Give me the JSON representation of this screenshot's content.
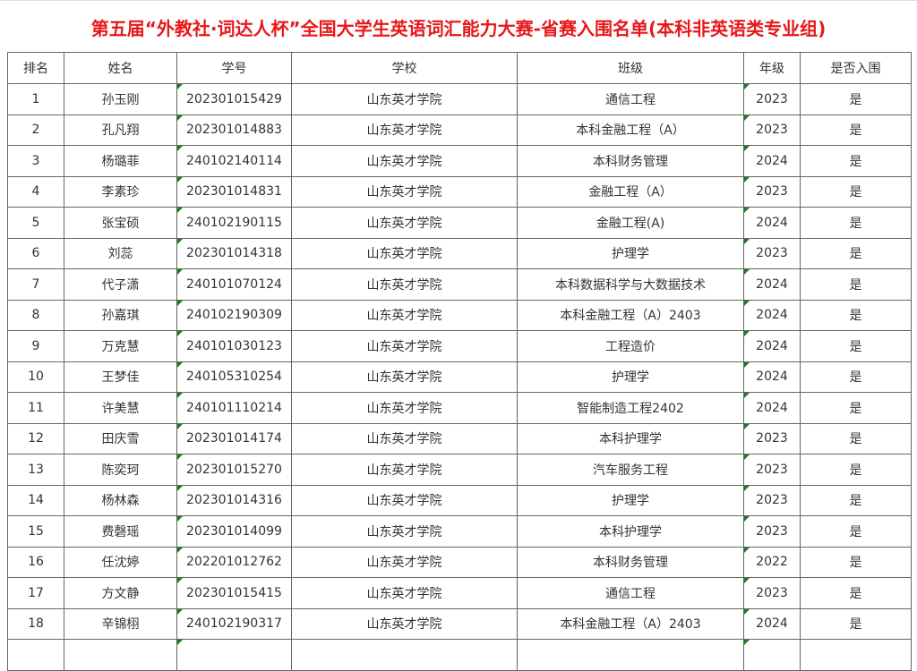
{
  "title": "第五届“外教社·词达人杯”全国大学生英语词汇能力大赛-省赛入围名单(本科非英语类专业组)",
  "headers": [
    "排名",
    "姓名",
    "学号",
    "学校",
    "班级",
    "年级",
    "是否入围"
  ],
  "rows": [
    [
      "1",
      "孙玉刚",
      "202301015429",
      "山东英才学院",
      "通信工程",
      "2023",
      "是"
    ],
    [
      "2",
      "孔凡翔",
      "202301014883",
      "山东英才学院",
      "本科金融工程（A）",
      "2023",
      "是"
    ],
    [
      "3",
      "杨璐菲",
      "240102140114",
      "山东英才学院",
      "本科财务管理",
      "2024",
      "是"
    ],
    [
      "4",
      "李素珍",
      "202301014831",
      "山东英才学院",
      "金融工程（A）",
      "2023",
      "是"
    ],
    [
      "5",
      "张宝硕",
      "240102190115",
      "山东英才学院",
      "金融工程(A)",
      "2024",
      "是"
    ],
    [
      "6",
      "刘蕊",
      "202301014318",
      "山东英才学院",
      "护理学",
      "2023",
      "是"
    ],
    [
      "7",
      "代子潇",
      "240101070124",
      "山东英才学院",
      "本科数据科学与大数据技术",
      "2024",
      "是"
    ],
    [
      "8",
      "孙嘉琪",
      "240102190309",
      "山东英才学院",
      "本科金融工程（A）2403",
      "2024",
      "是"
    ],
    [
      "9",
      "万克慧",
      "240101030123",
      "山东英才学院",
      "工程造价",
      "2024",
      "是"
    ],
    [
      "10",
      "王梦佳",
      "240105310254",
      "山东英才学院",
      "护理学",
      "2024",
      "是"
    ],
    [
      "11",
      "许美慧",
      "240101110214",
      "山东英才学院",
      "智能制造工程2402",
      "2024",
      "是"
    ],
    [
      "12",
      "田庆雪",
      "202301014174",
      "山东英才学院",
      "本科护理学",
      "2023",
      "是"
    ],
    [
      "13",
      "陈奕珂",
      "202301015270",
      "山东英才学院",
      "汽车服务工程",
      "2023",
      "是"
    ],
    [
      "14",
      "杨林森",
      "202301014316",
      "山东英才学院",
      "护理学",
      "2023",
      "是"
    ],
    [
      "15",
      "费磬瑶",
      "202301014099",
      "山东英才学院",
      "本科护理学",
      "2023",
      "是"
    ],
    [
      "16",
      "任沈婷",
      "202201012762",
      "山东英才学院",
      "本科财务管理",
      "2022",
      "是"
    ],
    [
      "17",
      "方文静",
      "202301015415",
      "山东英才学院",
      "通信工程",
      "2023",
      "是"
    ],
    [
      "18",
      "辛锦栩",
      "240102190317",
      "山东英才学院",
      "本科金融工程（A）2403",
      "2024",
      "是"
    ]
  ],
  "colors": {
    "title": "#e8171a",
    "indicator": "#1a7f1a"
  }
}
